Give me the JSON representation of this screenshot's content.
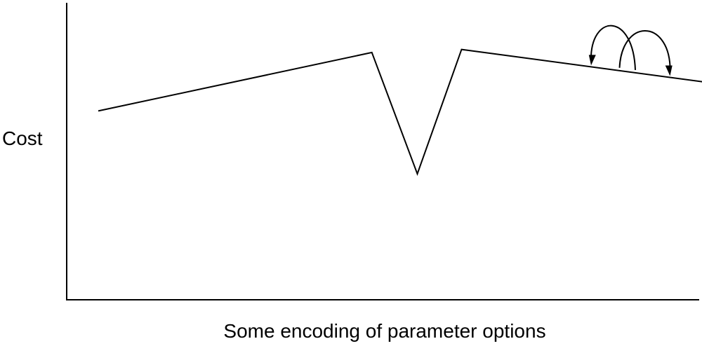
{
  "chart_data": {
    "type": "line",
    "title": "",
    "xlabel": "Some encoding of parameter options",
    "ylabel": "Cost",
    "xlim": [
      0,
      100
    ],
    "ylim": [
      0,
      100
    ],
    "grid": false,
    "legend": "none",
    "series": [
      {
        "x": [
          5,
          48.3,
          55.5,
          62.5,
          105
        ],
        "y": [
          63,
          82.5,
          42,
          83.5,
          71.5
        ]
      }
    ],
    "annotations": [
      {
        "type": "hop-arrow",
        "from_x": 90,
        "to_x": 83
      },
      {
        "type": "hop-arrow",
        "from_x": 87.5,
        "to_x": 95.5
      }
    ],
    "colors": {
      "line": "#000000",
      "axis": "#000000"
    }
  }
}
